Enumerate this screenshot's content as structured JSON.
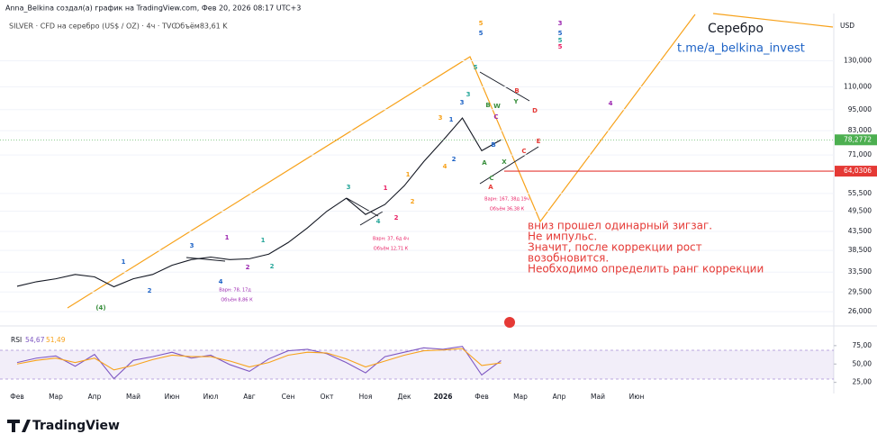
{
  "header": {
    "author_line": "Anna_Belkina создал(а) график на TradingView.com, Фев 20, 2026 08:17 UTC+3",
    "symbol_line": "SILVER · CFD на серебро (US$ / OZ) · 4ч · TVC",
    "volume": "Объём83,61 K",
    "brand": "TradingView"
  },
  "chart_data": [
    {
      "type": "line",
      "title": "Серебро",
      "subtitle": "t.me/a_belkina_invest",
      "y_label": "USD",
      "categories": [
        "Фев",
        null,
        "Мар",
        null,
        "Апр",
        null,
        "Май",
        null,
        "Июн",
        null,
        "Июл",
        null,
        "Авг",
        null,
        "Сен",
        null,
        "Окт",
        null,
        "Ноя",
        null,
        "Дек",
        null,
        "2026",
        null,
        "Фев",
        null,
        "Мар",
        null,
        "Апр",
        null,
        "Май",
        null,
        "Июн"
      ],
      "series": [
        {
          "color": "#131722",
          "values": [
            30.6,
            31.5,
            32.1,
            33.0,
            32.5,
            30.5,
            32.1,
            33.0,
            35.0,
            36.3,
            36.9,
            36.3,
            36.5,
            37.6,
            40.5,
            44.5,
            49.5,
            53.8,
            48.5,
            51.7,
            58.3,
            68.0,
            78.0,
            90.0,
            73.0,
            78.2772,
            null,
            null,
            null,
            null,
            null,
            null,
            null
          ]
        }
      ],
      "ylim": [
        24.7,
        176
      ],
      "log_scale": true,
      "grid": true,
      "yticks": [
        {
          "value": 26,
          "label": "26,000"
        },
        {
          "value": 29.5,
          "label": "29,500"
        },
        {
          "value": 33.5,
          "label": "33,500"
        },
        {
          "value": 38.5,
          "label": "38,500"
        },
        {
          "value": 43.5,
          "label": "43,500"
        },
        {
          "value": 49.5,
          "label": "49,500"
        },
        {
          "value": 55.5,
          "label": "55,500"
        },
        {
          "value": 71,
          "label": "71,000"
        },
        {
          "value": 83,
          "label": "83,000"
        },
        {
          "value": 95,
          "label": "95,000"
        },
        {
          "value": 110,
          "label": "110,000"
        },
        {
          "value": 130,
          "label": "130,000"
        }
      ],
      "price_labels": [
        {
          "value": 78.2772,
          "label": "78,2772",
          "color": "#4caf50"
        },
        {
          "value": 64.0306,
          "label": "64,0306",
          "color": "#e53935"
        }
      ],
      "annotations": [
        {
          "text": "(4)",
          "color": "#388e3c"
        },
        {
          "text": "1",
          "color": "#1e63c6"
        },
        {
          "text": "2",
          "color": "#1e63c6"
        },
        {
          "text": "3",
          "color": "#1e63c6"
        },
        {
          "text": "4",
          "color": "#1e63c6"
        },
        {
          "text": "1",
          "color": "#9c27b0"
        },
        {
          "text": "2",
          "color": "#9c27b0"
        },
        {
          "text": "1",
          "color": "#26a69a"
        },
        {
          "text": "2",
          "color": "#26a69a"
        },
        {
          "text": "3",
          "color": "#26a69a"
        },
        {
          "text": "4",
          "color": "#26a69a"
        },
        {
          "text": "1",
          "color": "#e91e63"
        },
        {
          "text": "2",
          "color": "#e91e63"
        },
        {
          "text": "1",
          "color": "#f7a21b"
        },
        {
          "text": "2",
          "color": "#f7a21b"
        },
        {
          "text": "3",
          "color": "#f7a21b"
        },
        {
          "text": "4",
          "color": "#f7a21b"
        },
        {
          "text": "5",
          "color": "#f7a21b"
        },
        {
          "text": "5",
          "color": "#1e63c6"
        },
        {
          "text": "3",
          "color": "#1e63c6"
        },
        {
          "text": "1",
          "color": "#1e63c6"
        },
        {
          "text": "2",
          "color": "#1e63c6"
        },
        {
          "text": "5",
          "color": "#26a69a"
        },
        {
          "text": "3",
          "color": "#26a69a"
        },
        {
          "text": "B",
          "color": "#388e3c"
        },
        {
          "text": "W",
          "color": "#388e3c"
        },
        {
          "text": "B",
          "color": "#e53935"
        },
        {
          "text": "D",
          "color": "#e53935"
        },
        {
          "text": "Y",
          "color": "#388e3c"
        },
        {
          "text": "E",
          "color": "#e53935"
        },
        {
          "text": "C",
          "color": "#e53935"
        },
        {
          "text": "X",
          "color": "#388e3c"
        },
        {
          "text": "A",
          "color": "#388e3c"
        },
        {
          "text": "A",
          "color": "#e53935"
        },
        {
          "text": "C",
          "color": "#388e3c"
        },
        {
          "text": "B",
          "color": "#1e63c6"
        },
        {
          "text": "C",
          "color": "#9c27b0"
        },
        {
          "text": "4",
          "color": "#9c27b0"
        },
        {
          "text": "3",
          "color": "#9c27b0"
        },
        {
          "text": "5",
          "color": "#1e63c6"
        },
        {
          "text": "5",
          "color": "#26a69a"
        },
        {
          "text": "5",
          "color": "#e91e63"
        },
        {
          "text": "Варн: 78, 17д",
          "color": "#9c27b0"
        },
        {
          "text": "Объём 8,86 К",
          "color": "#9c27b0"
        },
        {
          "text": "Варн: 37, 6д 4ч",
          "color": "#e91e63"
        },
        {
          "text": "Объём 12,71 К",
          "color": "#e91e63"
        },
        {
          "text": "Варн: 167, 38д 19ч",
          "color": "#e91e63"
        },
        {
          "text": "Объём 36,38 К",
          "color": "#e91e63"
        }
      ],
      "notes": [
        "вниз прошел одинарный зигзаг.",
        "Не импульс.",
        "Значит, после коррекции рост",
        "возобновится.",
        "Необходимо определить ранг коррекции"
      ]
    },
    {
      "type": "line",
      "title": "RSI",
      "readouts": [
        "54,67",
        "51,49"
      ],
      "series": [
        {
          "color": "#7e57c2",
          "values": [
            52,
            58,
            61,
            47,
            63,
            30,
            55,
            60,
            66,
            58,
            62,
            49,
            40,
            57,
            68,
            70,
            64,
            52,
            38,
            60,
            66,
            72,
            70,
            74,
            35,
            54.67,
            null,
            null,
            null,
            null,
            null,
            null,
            null
          ]
        },
        {
          "color": "#f7a21b",
          "values": [
            50,
            55,
            58,
            52,
            58,
            42,
            48,
            56,
            62,
            60,
            60,
            54,
            46,
            52,
            62,
            66,
            65,
            57,
            46,
            54,
            62,
            68,
            69,
            71,
            48,
            51.49,
            null,
            null,
            null,
            null,
            null,
            null,
            null
          ]
        }
      ],
      "ylim": [
        16,
        92
      ],
      "yticks": [
        {
          "value": 25,
          "label": "25,00"
        },
        {
          "value": 50,
          "label": "50,00"
        },
        {
          "value": 75,
          "label": "75,00"
        }
      ]
    }
  ]
}
